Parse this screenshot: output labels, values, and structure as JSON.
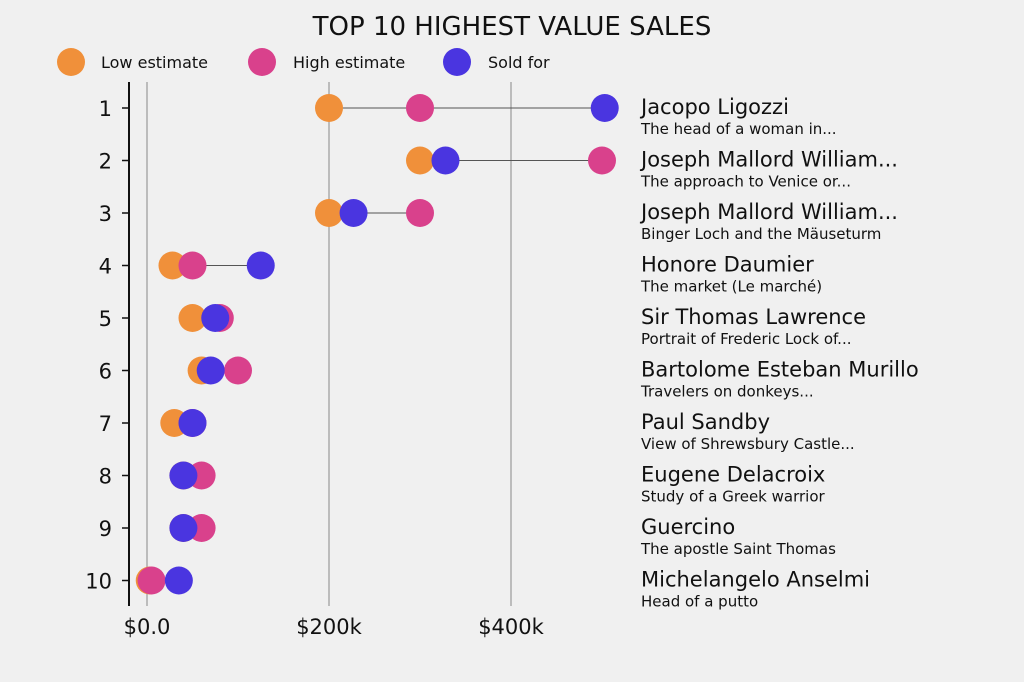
{
  "chart_data": {
    "type": "scatter",
    "title": "TOP 10 HIGHEST VALUE SALES",
    "legend": {
      "placement": "top-left",
      "items": [
        {
          "key": "low",
          "label": "Low estimate",
          "color": "#f0903a"
        },
        {
          "key": "high",
          "label": "High estimate",
          "color": "#d9418c"
        },
        {
          "key": "sold",
          "label": "Sold for",
          "color": "#4a35e0"
        }
      ]
    },
    "x_axis": {
      "min": -20000,
      "max": 520000,
      "ticks": [
        {
          "value": 0,
          "label": "$0.0"
        },
        {
          "value": 200000,
          "label": "$200k"
        },
        {
          "value": 400000,
          "label": "$400k"
        }
      ],
      "grid": true
    },
    "y_axis": {
      "ticks": [
        "1",
        "2",
        "3",
        "4",
        "5",
        "6",
        "7",
        "8",
        "9",
        "10"
      ]
    },
    "rows": [
      {
        "rank": "1",
        "artist": "Jacopo Ligozzi",
        "work": "The head of a woman in...",
        "low": 200000,
        "high": 300000,
        "sold": 503000
      },
      {
        "rank": "2",
        "artist": "Joseph Mallord William...",
        "work": "The approach to Venice or...",
        "low": 300000,
        "high": 500000,
        "sold": 328000
      },
      {
        "rank": "3",
        "artist": "Joseph Mallord William...",
        "work": "Binger Loch and the Mäuseturm",
        "low": 200000,
        "high": 300000,
        "sold": 227000
      },
      {
        "rank": "4",
        "artist": "Honore Daumier",
        "work": "The market (Le marché)",
        "low": 28000,
        "high": 50000,
        "sold": 125000
      },
      {
        "rank": "5",
        "artist": "Sir Thomas Lawrence",
        "work": "Portrait of Frederic Lock of...",
        "low": 50000,
        "high": 80000,
        "sold": 75000
      },
      {
        "rank": "6",
        "artist": "Bartolome Esteban Murillo",
        "work": "Travelers on donkeys...",
        "low": 60000,
        "high": 100000,
        "sold": 70000
      },
      {
        "rank": "7",
        "artist": "Paul Sandby",
        "work": "View of Shrewsbury Castle...",
        "low": 30000,
        "high": 50000,
        "sold": 50000
      },
      {
        "rank": "8",
        "artist": "Eugene Delacroix",
        "work": "Study of a Greek warrior",
        "low": 40000,
        "high": 60000,
        "sold": 40000
      },
      {
        "rank": "9",
        "artist": "Guercino",
        "work": "The apostle Saint Thomas",
        "low": 40000,
        "high": 60000,
        "sold": 40000
      },
      {
        "rank": "10",
        "artist": "Michelangelo Anselmi",
        "work": "Head of a putto",
        "low": 3000,
        "high": 5000,
        "sold": 35000
      }
    ]
  }
}
